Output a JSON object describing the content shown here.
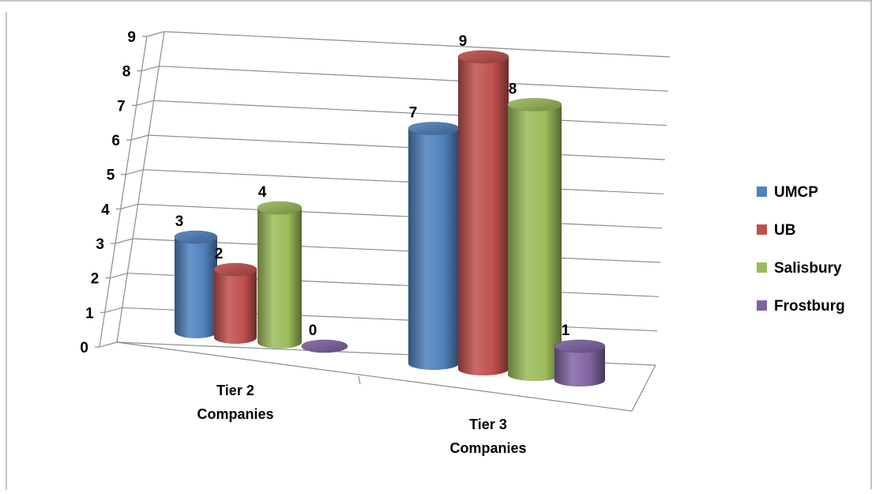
{
  "chart_data": {
    "type": "bar",
    "title": "",
    "xlabel": "",
    "ylabel": "",
    "categories": [
      "Tier 2|Companies",
      "Tier 3|Companies"
    ],
    "series": [
      {
        "name": "UMCP",
        "values": [
          3,
          7
        ],
        "color": "#4f81bd"
      },
      {
        "name": "UB",
        "values": [
          2,
          9
        ],
        "color": "#c0504d"
      },
      {
        "name": "Salisbury",
        "values": [
          4,
          8
        ],
        "color": "#9bbb59"
      },
      {
        "name": "Frostburg",
        "values": [
          0,
          1
        ],
        "color": "#8064a2"
      }
    ],
    "ylim": [
      0,
      9
    ],
    "yticks": [
      "0",
      "1",
      "2",
      "3",
      "4",
      "5",
      "6",
      "7",
      "8",
      "9"
    ],
    "grid": true,
    "legend_position": "right"
  }
}
